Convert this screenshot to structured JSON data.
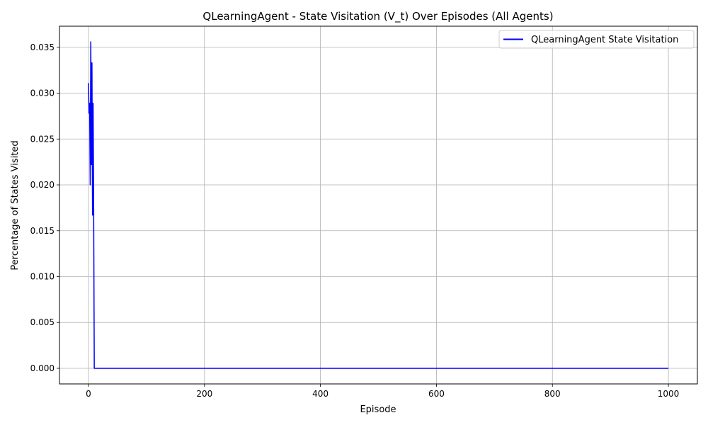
{
  "chart_data": {
    "type": "line",
    "title": "QLearningAgent - State Visitation (V_t) Over Episodes (All Agents)",
    "xlabel": "Episode",
    "ylabel": "Percentage of States Visited",
    "xlim": [
      -50,
      1050
    ],
    "ylim": [
      -0.0017,
      0.0373
    ],
    "xticks": [
      0,
      200,
      400,
      600,
      800,
      1000
    ],
    "xtick_labels": [
      "0",
      "200",
      "400",
      "600",
      "800",
      "1000"
    ],
    "yticks": [
      0.0,
      0.005,
      0.01,
      0.015,
      0.02,
      0.025,
      0.03,
      0.035
    ],
    "ytick_labels": [
      "0.000",
      "0.005",
      "0.010",
      "0.015",
      "0.020",
      "0.025",
      "0.030",
      "0.035"
    ],
    "grid": true,
    "legend_position": "upper right",
    "series": [
      {
        "name": "QLearningAgent State Visitation",
        "color": "#0000ff",
        "x": [
          0,
          1,
          2,
          3,
          4,
          5,
          6,
          7,
          8,
          9,
          10,
          1000
        ],
        "y": [
          0.0311,
          0.0278,
          0.0289,
          0.02,
          0.0356,
          0.0222,
          0.0333,
          0.0167,
          0.0289,
          0.0167,
          0.0,
          0.0
        ]
      }
    ]
  }
}
